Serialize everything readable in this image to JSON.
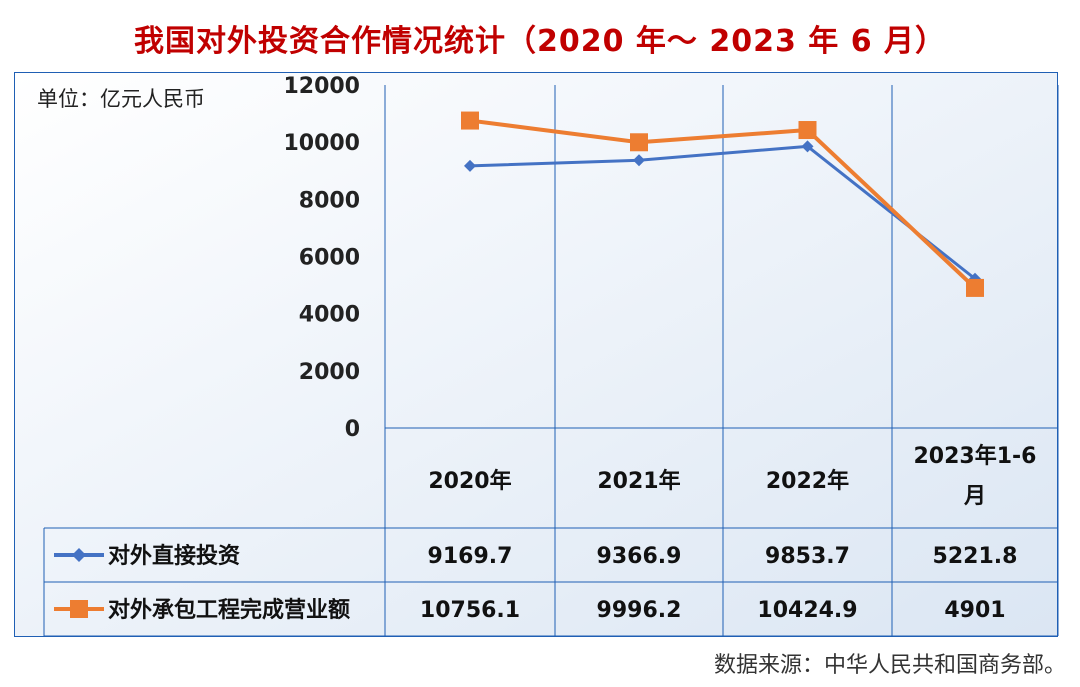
{
  "title": "我国对外投资合作情况统计（2020 年～ 2023 年 6 月）",
  "unit_label": "单位：亿元人民币",
  "source": "数据来源：中华人民共和国商务部。",
  "colors": {
    "title": "#c00000",
    "series_blue": "#4472c4",
    "series_orange": "#ed7d31",
    "grid": "#1f5fb4"
  },
  "chart_data": {
    "type": "line",
    "categories": [
      "2020年",
      "2021年",
      "2022年",
      "2023年1-6月"
    ],
    "ylim": [
      0,
      12000
    ],
    "yticks": [
      "0",
      "2000",
      "4000",
      "6000",
      "8000",
      "10000",
      "12000"
    ],
    "series": [
      {
        "name": "对外直接投资",
        "values": [
          9169.7,
          9366.9,
          9853.7,
          5221.8
        ],
        "labels": [
          "9169.7",
          "9366.9",
          "9853.7",
          "5221.8"
        ],
        "color": "#4472c4",
        "marker": "diamond"
      },
      {
        "name": "对外承包工程完成营业额",
        "values": [
          10756.1,
          9996.2,
          10424.9,
          4901
        ],
        "labels": [
          "10756.1",
          "9996.2",
          "10424.9",
          "4901"
        ],
        "color": "#ed7d31",
        "marker": "square"
      }
    ]
  }
}
